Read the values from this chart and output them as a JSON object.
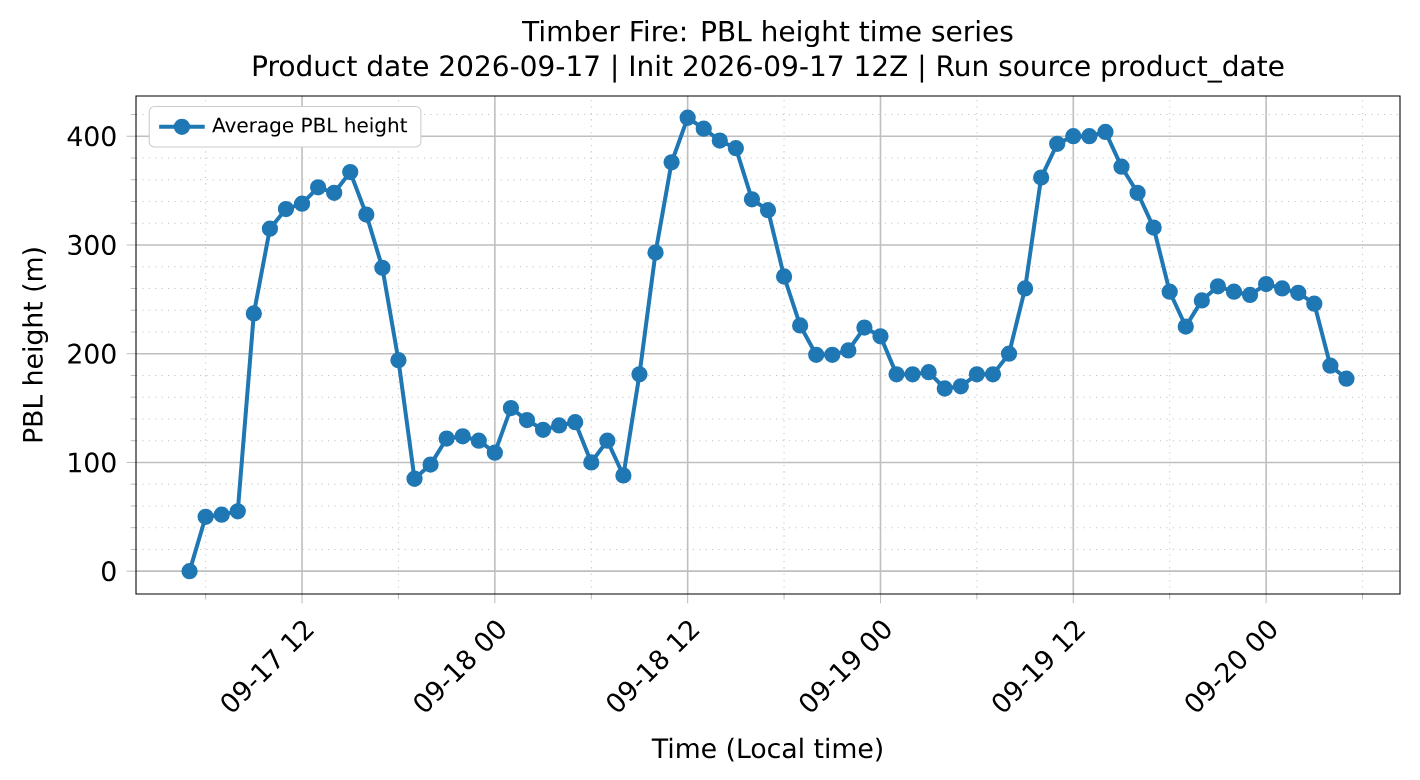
{
  "chart_data": {
    "type": "line",
    "title": "Timber Fire: PBL height time series",
    "subtitle": "Product date 2026-09-17 | Init 2026-09-17 12Z | Run source product_date",
    "xlabel": "Time (Local time)",
    "ylabel": "PBL height (m)",
    "x": [
      "2026-09-17T05:00",
      "2026-09-17T06:00",
      "2026-09-17T07:00",
      "2026-09-17T08:00",
      "2026-09-17T09:00",
      "2026-09-17T10:00",
      "2026-09-17T11:00",
      "2026-09-17T12:00",
      "2026-09-17T13:00",
      "2026-09-17T14:00",
      "2026-09-17T15:00",
      "2026-09-17T16:00",
      "2026-09-17T17:00",
      "2026-09-17T18:00",
      "2026-09-17T19:00",
      "2026-09-17T20:00",
      "2026-09-17T21:00",
      "2026-09-17T22:00",
      "2026-09-17T23:00",
      "2026-09-18T00:00",
      "2026-09-18T01:00",
      "2026-09-18T02:00",
      "2026-09-18T03:00",
      "2026-09-18T04:00",
      "2026-09-18T05:00",
      "2026-09-18T06:00",
      "2026-09-18T07:00",
      "2026-09-18T08:00",
      "2026-09-18T09:00",
      "2026-09-18T10:00",
      "2026-09-18T11:00",
      "2026-09-18T12:00",
      "2026-09-18T13:00",
      "2026-09-18T14:00",
      "2026-09-18T15:00",
      "2026-09-18T16:00",
      "2026-09-18T17:00",
      "2026-09-18T18:00",
      "2026-09-18T19:00",
      "2026-09-18T20:00",
      "2026-09-18T21:00",
      "2026-09-18T22:00",
      "2026-09-18T23:00",
      "2026-09-19T00:00",
      "2026-09-19T01:00",
      "2026-09-19T02:00",
      "2026-09-19T03:00",
      "2026-09-19T04:00",
      "2026-09-19T05:00",
      "2026-09-19T06:00",
      "2026-09-19T07:00",
      "2026-09-19T08:00",
      "2026-09-19T09:00",
      "2026-09-19T10:00",
      "2026-09-19T11:00",
      "2026-09-19T12:00",
      "2026-09-19T13:00",
      "2026-09-19T14:00",
      "2026-09-19T15:00",
      "2026-09-19T16:00",
      "2026-09-19T17:00",
      "2026-09-19T18:00",
      "2026-09-19T19:00",
      "2026-09-19T20:00",
      "2026-09-19T21:00",
      "2026-09-19T22:00",
      "2026-09-19T23:00",
      "2026-09-20T00:00",
      "2026-09-20T01:00",
      "2026-09-20T02:00",
      "2026-09-20T03:00",
      "2026-09-20T04:00",
      "2026-09-20T05:00"
    ],
    "series": [
      {
        "name": "Average PBL height",
        "color": "#1f77b4",
        "values": [
          0,
          50,
          52,
          55,
          237,
          315,
          333,
          338,
          353,
          348,
          367,
          328,
          279,
          194,
          85,
          98,
          122,
          124,
          120,
          109,
          150,
          139,
          130,
          134,
          137,
          100,
          120,
          88,
          181,
          293,
          376,
          417,
          407,
          396,
          389,
          342,
          332,
          271,
          226,
          199,
          199,
          203,
          224,
          216,
          181,
          181,
          183,
          168,
          170,
          181,
          181,
          200,
          260,
          362,
          393,
          400,
          400,
          404,
          372,
          348,
          316,
          257,
          225,
          249,
          262,
          257,
          254,
          264,
          260,
          256,
          246,
          189,
          177
        ]
      }
    ],
    "xlim": [
      "2026-09-17T01:40",
      "2026-09-20T08:20"
    ],
    "xticks": [
      {
        "value": "2026-09-17T06:00",
        "label": null
      },
      {
        "value": "2026-09-17T12:00",
        "label": "09-17 12"
      },
      {
        "value": "2026-09-17T18:00",
        "label": null
      },
      {
        "value": "2026-09-18T00:00",
        "label": "09-18 00"
      },
      {
        "value": "2026-09-18T06:00",
        "label": null
      },
      {
        "value": "2026-09-18T12:00",
        "label": "09-18 12"
      },
      {
        "value": "2026-09-18T18:00",
        "label": null
      },
      {
        "value": "2026-09-19T00:00",
        "label": "09-19 00"
      },
      {
        "value": "2026-09-19T06:00",
        "label": null
      },
      {
        "value": "2026-09-19T12:00",
        "label": "09-19 12"
      },
      {
        "value": "2026-09-19T18:00",
        "label": null
      },
      {
        "value": "2026-09-20T00:00",
        "label": "09-20 00"
      },
      {
        "value": "2026-09-20T06:00",
        "label": null
      }
    ],
    "ylim": [
      -21,
      437
    ],
    "yticks": [
      0,
      {
        "value": 20,
        "label": null
      },
      {
        "value": 40,
        "label": null
      },
      {
        "value": 60,
        "label": null
      },
      {
        "value": 80,
        "label": null
      },
      100,
      {
        "value": 120,
        "label": null
      },
      {
        "value": 140,
        "label": null
      },
      {
        "value": 160,
        "label": null
      },
      {
        "value": 180,
        "label": null
      },
      200,
      {
        "value": 220,
        "label": null
      },
      {
        "value": 240,
        "label": null
      },
      {
        "value": 260,
        "label": null
      },
      {
        "value": 280,
        "label": null
      },
      300,
      {
        "value": 320,
        "label": null
      },
      {
        "value": 340,
        "label": null
      },
      {
        "value": 360,
        "label": null
      },
      {
        "value": 380,
        "label": null
      },
      400,
      {
        "value": 420,
        "label": null
      }
    ],
    "grid": true,
    "legend": "top left",
    "marker": "circle",
    "line_style": "solid"
  }
}
